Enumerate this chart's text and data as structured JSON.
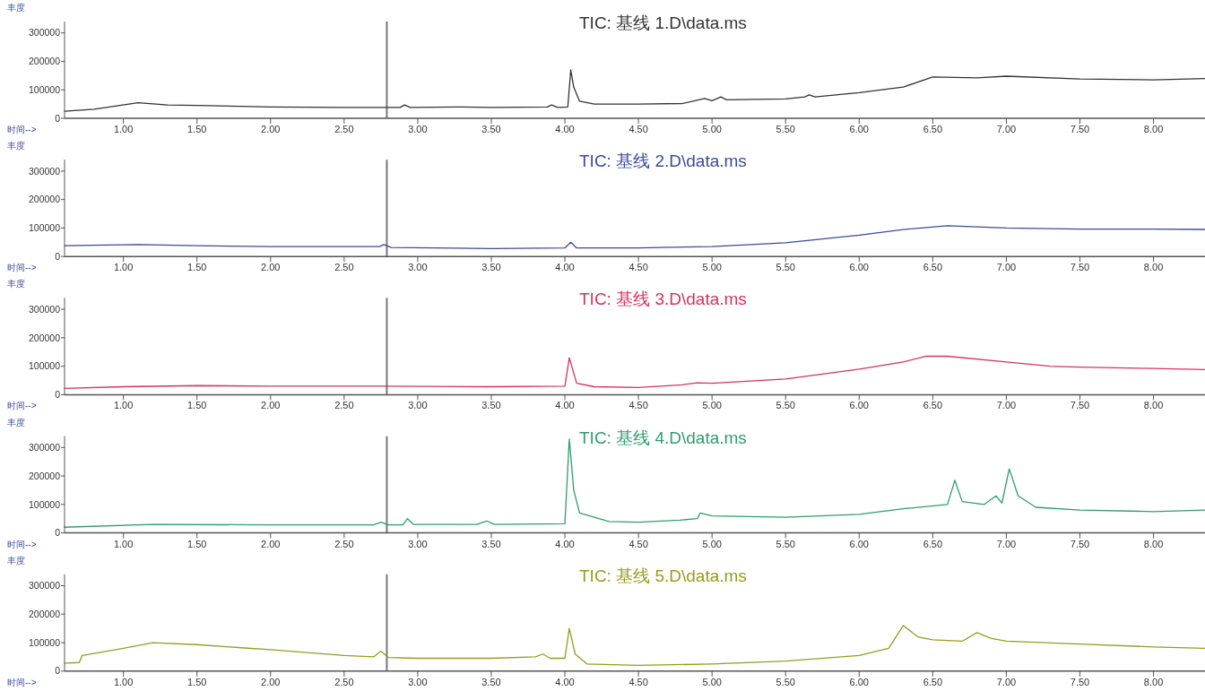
{
  "chart_data": [
    {
      "type": "line",
      "title": "TIC: 基线 1.D\\data.ms",
      "xlabel": "时间-->",
      "ylabel": "丰度",
      "xlim": [
        0.6,
        8.35
      ],
      "ylim": [
        0,
        340000
      ],
      "yticks": [
        0,
        100000,
        200000,
        300000
      ],
      "xticks": [
        {
          "value": 1,
          "label": "1.00"
        },
        {
          "value": 1.5,
          "label": "1.50"
        },
        {
          "value": 2,
          "label": "2.00"
        },
        {
          "value": 2.5,
          "label": "2.50"
        },
        {
          "value": 3,
          "label": "3.00"
        },
        {
          "value": 3.5,
          "label": "3.50"
        },
        {
          "value": 4,
          "label": "4.00"
        },
        {
          "value": 4.5,
          "label": "4.50"
        },
        {
          "value": 5,
          "label": "5.00"
        },
        {
          "value": 5.5,
          "label": "5.50"
        },
        {
          "value": 6,
          "label": "6.00"
        },
        {
          "value": 6.5,
          "label": "6.50"
        },
        {
          "value": 7,
          "label": "7.00"
        },
        {
          "value": 7.5,
          "label": "7.50"
        },
        {
          "value": 8,
          "label": "8.00"
        }
      ],
      "ref_lines": [
        {
          "axis": "x",
          "value": 2.79,
          "color": "#777777"
        }
      ],
      "series": [
        {
          "color": "#333333",
          "x": [
            0.6,
            0.8,
            1.1,
            1.3,
            1.5,
            1.8,
            2,
            2.5,
            2.8,
            2.88,
            2.91,
            2.95,
            3.3,
            3.5,
            3.88,
            3.91,
            3.95,
            4.02,
            4.04,
            4.06,
            4.1,
            4.2,
            4.5,
            4.8,
            4.95,
            5,
            5.06,
            5.1,
            5.5,
            5.63,
            5.66,
            5.7,
            6,
            6.3,
            6.5,
            6.8,
            7,
            7.5,
            8,
            8.35
          ],
          "values": [
            25000,
            32000,
            55000,
            47000,
            45000,
            42000,
            40000,
            38000,
            38000,
            38000,
            47000,
            38000,
            40000,
            38000,
            40000,
            47000,
            38000,
            40000,
            170000,
            110000,
            60000,
            50000,
            50000,
            52000,
            70000,
            62000,
            75000,
            65000,
            68000,
            75000,
            82000,
            75000,
            90000,
            110000,
            145000,
            142000,
            148000,
            138000,
            135000,
            140000
          ]
        }
      ]
    },
    {
      "type": "line",
      "title": "TIC: 基线 2.D\\data.ms",
      "xlabel": "时间-->",
      "ylabel": "丰度",
      "xlim": [
        0.6,
        8.35
      ],
      "ylim": [
        0,
        340000
      ],
      "yticks": [
        0,
        100000,
        200000,
        300000
      ],
      "xticks": [
        {
          "value": 1,
          "label": "1.00"
        },
        {
          "value": 1.5,
          "label": "1.50"
        },
        {
          "value": 2,
          "label": "2.00"
        },
        {
          "value": 2.5,
          "label": "2.50"
        },
        {
          "value": 3,
          "label": "3.00"
        },
        {
          "value": 3.5,
          "label": "3.50"
        },
        {
          "value": 4,
          "label": "4.00"
        },
        {
          "value": 4.5,
          "label": "4.50"
        },
        {
          "value": 5,
          "label": "5.00"
        },
        {
          "value": 5.5,
          "label": "5.50"
        },
        {
          "value": 6,
          "label": "6.00"
        },
        {
          "value": 6.5,
          "label": "6.50"
        },
        {
          "value": 7,
          "label": "7.00"
        },
        {
          "value": 7.5,
          "label": "7.50"
        },
        {
          "value": 8,
          "label": "8.00"
        }
      ],
      "ref_lines": [
        {
          "axis": "x",
          "value": 2.79,
          "color": "#777777"
        }
      ],
      "series": [
        {
          "color": "#3b4a9c",
          "x": [
            0.6,
            1.1,
            1.5,
            2,
            2.5,
            2.74,
            2.77,
            2.82,
            3.5,
            4,
            4.04,
            4.08,
            4.5,
            5,
            5.5,
            6,
            6.3,
            6.6,
            7,
            7.5,
            8,
            8.35
          ],
          "values": [
            38000,
            42000,
            38000,
            35000,
            35000,
            35000,
            42000,
            32000,
            28000,
            30000,
            50000,
            30000,
            30000,
            35000,
            48000,
            75000,
            95000,
            108000,
            100000,
            96000,
            96000,
            95000
          ]
        }
      ]
    },
    {
      "type": "line",
      "title": "TIC: 基线 3.D\\data.ms",
      "xlabel": "时间-->",
      "ylabel": "丰度",
      "xlim": [
        0.6,
        8.35
      ],
      "ylim": [
        0,
        340000
      ],
      "yticks": [
        0,
        100000,
        200000,
        300000
      ],
      "xticks": [
        {
          "value": 1,
          "label": "1.00"
        },
        {
          "value": 1.5,
          "label": "1.50"
        },
        {
          "value": 2,
          "label": "2.00"
        },
        {
          "value": 2.5,
          "label": "2.50"
        },
        {
          "value": 3,
          "label": "3.00"
        },
        {
          "value": 3.5,
          "label": "3.50"
        },
        {
          "value": 4,
          "label": "4.00"
        },
        {
          "value": 4.5,
          "label": "4.50"
        },
        {
          "value": 5,
          "label": "5.00"
        },
        {
          "value": 5.5,
          "label": "5.50"
        },
        {
          "value": 6,
          "label": "6.00"
        },
        {
          "value": 6.5,
          "label": "6.50"
        },
        {
          "value": 7,
          "label": "7.00"
        },
        {
          "value": 7.5,
          "label": "7.50"
        },
        {
          "value": 8,
          "label": "8.00"
        }
      ],
      "ref_lines": [
        {
          "axis": "x",
          "value": 2.79,
          "color": "#777777"
        }
      ],
      "series": [
        {
          "color": "#d6335e",
          "x": [
            0.6,
            1,
            1.5,
            2,
            2.5,
            2.8,
            3.5,
            4,
            4.03,
            4.08,
            4.2,
            4.5,
            4.8,
            4.9,
            5,
            5.5,
            6,
            6.3,
            6.45,
            6.6,
            7,
            7.3,
            7.5,
            8,
            8.35
          ],
          "values": [
            22000,
            28000,
            32000,
            30000,
            30000,
            30000,
            28000,
            30000,
            130000,
            40000,
            28000,
            25000,
            35000,
            42000,
            40000,
            55000,
            90000,
            115000,
            135000,
            135000,
            115000,
            100000,
            97000,
            92000,
            88000
          ]
        }
      ]
    },
    {
      "type": "line",
      "title": "TIC: 基线 4.D\\data.ms",
      "xlabel": "时间-->",
      "ylabel": "丰度",
      "xlim": [
        0.6,
        8.35
      ],
      "ylim": [
        0,
        340000
      ],
      "yticks": [
        0,
        100000,
        200000,
        300000
      ],
      "xticks": [
        {
          "value": 1,
          "label": "1.00"
        },
        {
          "value": 1.5,
          "label": "1.50"
        },
        {
          "value": 2,
          "label": "2.00"
        },
        {
          "value": 2.5,
          "label": "2.50"
        },
        {
          "value": 3,
          "label": "3.00"
        },
        {
          "value": 3.5,
          "label": "3.50"
        },
        {
          "value": 4,
          "label": "4.00"
        },
        {
          "value": 4.5,
          "label": "4.50"
        },
        {
          "value": 5,
          "label": "5.00"
        },
        {
          "value": 5.5,
          "label": "5.50"
        },
        {
          "value": 6,
          "label": "6.00"
        },
        {
          "value": 6.5,
          "label": "6.50"
        },
        {
          "value": 7,
          "label": "7.00"
        },
        {
          "value": 7.5,
          "label": "7.50"
        },
        {
          "value": 8,
          "label": "8.00"
        }
      ],
      "ref_lines": [
        {
          "axis": "x",
          "value": 2.79,
          "color": "#777777"
        }
      ],
      "series": [
        {
          "color": "#2e9e6e",
          "x": [
            0.6,
            1.2,
            2,
            2.7,
            2.75,
            2.8,
            2.9,
            2.93,
            2.97,
            3.4,
            3.47,
            3.52,
            4,
            4.03,
            4.06,
            4.1,
            4.3,
            4.5,
            4.78,
            4.9,
            4.92,
            5,
            5.5,
            6,
            6.3,
            6.6,
            6.65,
            6.7,
            6.85,
            6.93,
            6.97,
            7.02,
            7.08,
            7.2,
            7.5,
            8,
            8.35
          ],
          "values": [
            20000,
            30000,
            28000,
            28000,
            38000,
            28000,
            28000,
            50000,
            30000,
            30000,
            42000,
            30000,
            32000,
            330000,
            150000,
            70000,
            40000,
            38000,
            45000,
            50000,
            70000,
            60000,
            55000,
            65000,
            85000,
            100000,
            185000,
            110000,
            100000,
            130000,
            105000,
            225000,
            130000,
            90000,
            80000,
            75000,
            80000
          ]
        }
      ]
    },
    {
      "type": "line",
      "title": "TIC: 基线 5.D\\data.ms",
      "xlabel": "时间-->",
      "ylabel": "丰度",
      "xlim": [
        0.6,
        8.35
      ],
      "ylim": [
        0,
        340000
      ],
      "yticks": [
        0,
        100000,
        200000,
        300000
      ],
      "xticks": [
        {
          "value": 1,
          "label": "1.00"
        },
        {
          "value": 1.5,
          "label": "1.50"
        },
        {
          "value": 2,
          "label": "2.00"
        },
        {
          "value": 2.5,
          "label": "2.50"
        },
        {
          "value": 3,
          "label": "3.00"
        },
        {
          "value": 3.5,
          "label": "3.50"
        },
        {
          "value": 4,
          "label": "4.00"
        },
        {
          "value": 4.5,
          "label": "4.50"
        },
        {
          "value": 5,
          "label": "5.00"
        },
        {
          "value": 5.5,
          "label": "5.50"
        },
        {
          "value": 6,
          "label": "6.00"
        },
        {
          "value": 6.5,
          "label": "6.50"
        },
        {
          "value": 7,
          "label": "7.00"
        },
        {
          "value": 7.5,
          "label": "7.50"
        },
        {
          "value": 8,
          "label": "8.00"
        }
      ],
      "ref_lines": [
        {
          "axis": "x",
          "value": 2.79,
          "color": "#777777"
        }
      ],
      "series": [
        {
          "color": "#9a9a20",
          "x": [
            0.6,
            0.7,
            0.72,
            1,
            1.2,
            1.5,
            1.8,
            2,
            2.5,
            2.7,
            2.75,
            2.8,
            3,
            3.5,
            3.8,
            3.85,
            3.9,
            4,
            4.03,
            4.07,
            4.15,
            4.5,
            5,
            5.5,
            6,
            6.2,
            6.3,
            6.4,
            6.5,
            6.7,
            6.8,
            6.9,
            7,
            7.5,
            8,
            8.35
          ],
          "values": [
            28000,
            30000,
            55000,
            80000,
            100000,
            93000,
            82000,
            75000,
            55000,
            50000,
            70000,
            48000,
            45000,
            45000,
            50000,
            60000,
            45000,
            45000,
            150000,
            60000,
            25000,
            20000,
            25000,
            35000,
            55000,
            80000,
            160000,
            120000,
            110000,
            105000,
            135000,
            115000,
            105000,
            95000,
            85000,
            80000
          ]
        }
      ]
    }
  ]
}
